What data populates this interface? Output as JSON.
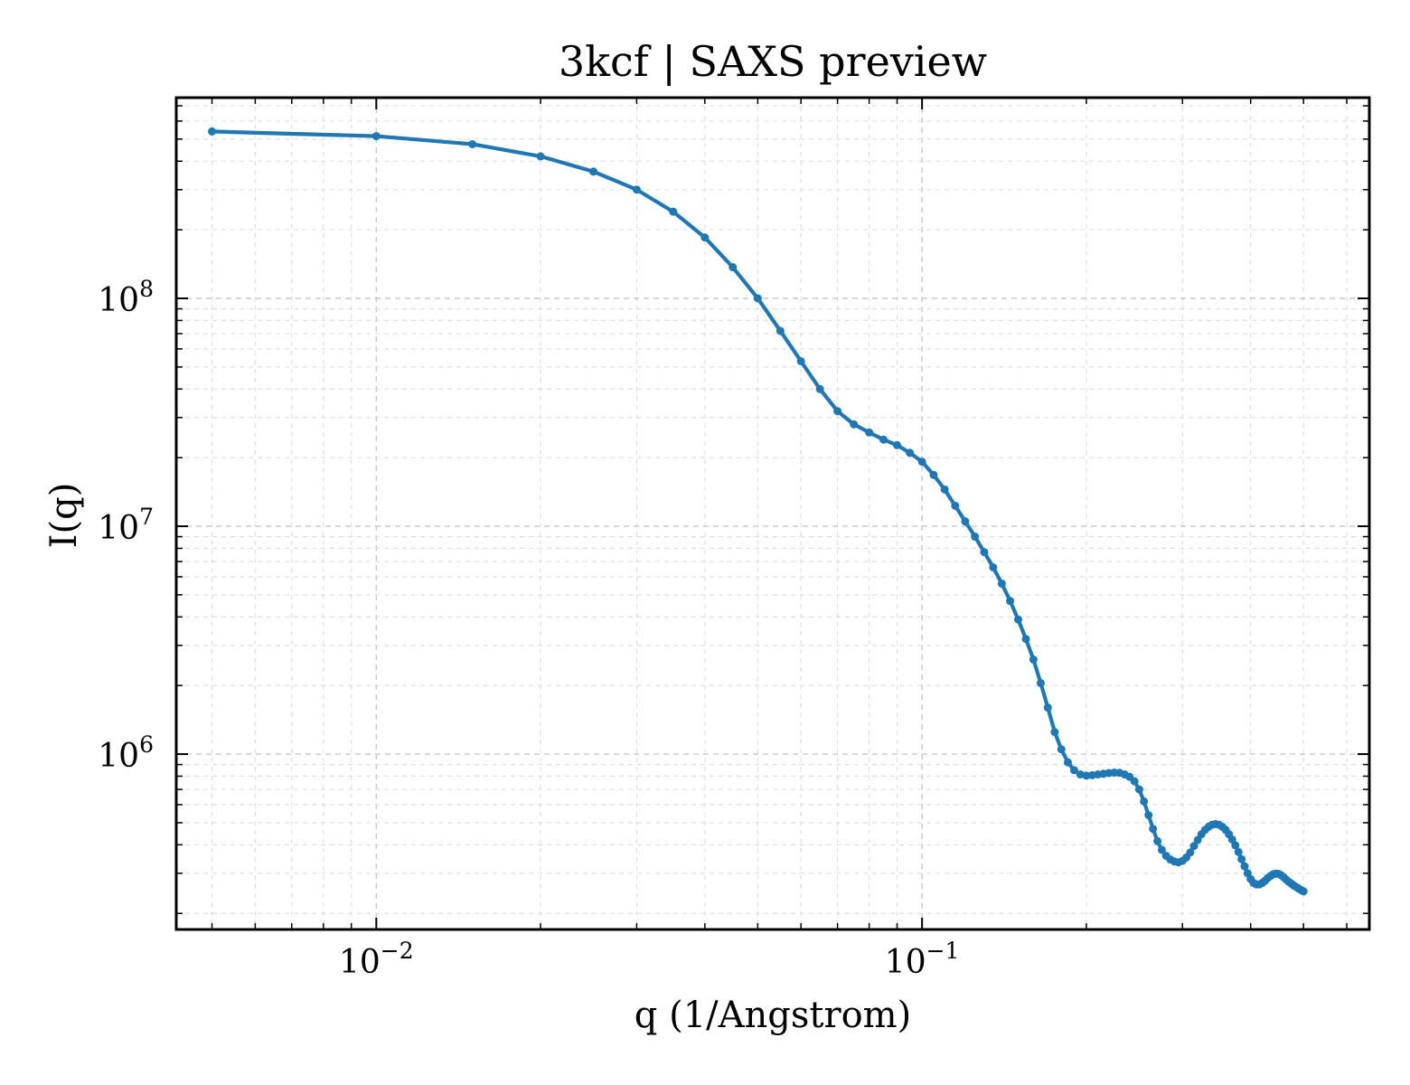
{
  "chart_data": {
    "type": "line",
    "title": "3kcf | SAXS preview",
    "xlabel": "q (1/Angstrom)",
    "ylabel": "I(q)",
    "xscale": "log",
    "yscale": "log",
    "xlim": [
      0.0043,
      0.66
    ],
    "ylim": [
      170000,
      760000000
    ],
    "grid": true,
    "legend": false,
    "line_color": "#1f77b4",
    "x_ticks": [
      {
        "base": "10",
        "exp": "−2",
        "value": 0.01
      },
      {
        "base": "10",
        "exp": "−1",
        "value": 0.1
      }
    ],
    "y_ticks": [
      {
        "base": "10",
        "exp": "6",
        "value": 1000000
      },
      {
        "base": "10",
        "exp": "7",
        "value": 10000000
      },
      {
        "base": "10",
        "exp": "8",
        "value": 100000000
      }
    ],
    "x": [
      0.005,
      0.01,
      0.015,
      0.02,
      0.025,
      0.03,
      0.035,
      0.04,
      0.045,
      0.05,
      0.055,
      0.06,
      0.065,
      0.07,
      0.075,
      0.08,
      0.085,
      0.09,
      0.095,
      0.1,
      0.105,
      0.11,
      0.115,
      0.12,
      0.125,
      0.13,
      0.135,
      0.14,
      0.145,
      0.15,
      0.155,
      0.16,
      0.165,
      0.17,
      0.175,
      0.18,
      0.185,
      0.19,
      0.195,
      0.2,
      0.205,
      0.21,
      0.215,
      0.22,
      0.225,
      0.23,
      0.235,
      0.24,
      0.245,
      0.25,
      0.255,
      0.26,
      0.265,
      0.27,
      0.275,
      0.28,
      0.285,
      0.29,
      0.295,
      0.3,
      0.305,
      0.31,
      0.315,
      0.32,
      0.325,
      0.33,
      0.335,
      0.34,
      0.345,
      0.35,
      0.355,
      0.36,
      0.365,
      0.37,
      0.375,
      0.38,
      0.385,
      0.39,
      0.395,
      0.4,
      0.405,
      0.41,
      0.415,
      0.42,
      0.425,
      0.43,
      0.435,
      0.44,
      0.445,
      0.45,
      0.455,
      0.46,
      0.465,
      0.47,
      0.475,
      0.48,
      0.485,
      0.49,
      0.495,
      0.5
    ],
    "series": [
      {
        "values": [
          540000000,
          515000000,
          475000000,
          420000000,
          360000000,
          300000000,
          240000000,
          185000000,
          137000000,
          100000000,
          72000000,
          53000000,
          40000000,
          32000000,
          28000000,
          25800000,
          24000000,
          22700000,
          21000000,
          19200000,
          16800000,
          14500000,
          12300000,
          10500000,
          9000000,
          7700000,
          6600000,
          5600000,
          4700000,
          3900000,
          3200000,
          2600000,
          2050000,
          1600000,
          1250000,
          1050000,
          920000,
          850000,
          815000,
          805000,
          808000,
          815000,
          820000,
          826000,
          830000,
          828000,
          815000,
          795000,
          760000,
          700000,
          620000,
          540000,
          470000,
          415000,
          380000,
          358000,
          345000,
          338000,
          335000,
          340000,
          352000,
          370000,
          395000,
          420000,
          445000,
          465000,
          480000,
          490000,
          493000,
          490000,
          480000,
          465000,
          445000,
          422000,
          398000,
          372000,
          346000,
          322000,
          300000,
          283000,
          272000,
          268000,
          268000,
          272000,
          278000,
          286000,
          292000,
          297000,
          299000,
          298000,
          294000,
          288000,
          281000,
          275000,
          270000,
          265000,
          261000,
          257000,
          253000,
          250000
        ]
      }
    ]
  }
}
